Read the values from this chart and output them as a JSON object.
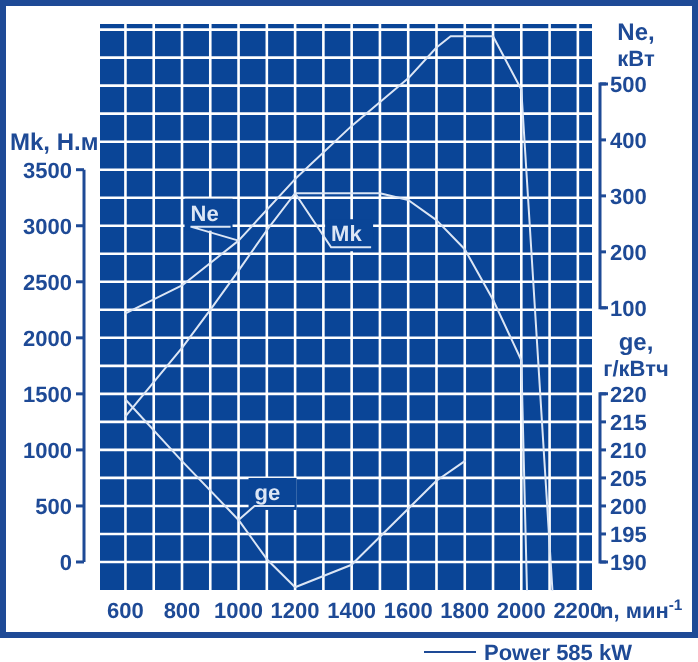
{
  "chart_data": {
    "type": "line",
    "xlabel": "n, мин$^{-1}$",
    "ylabel": "Mk, Н.м",
    "y2label": "Ne, кВт",
    "y3label": "ge, г/кВтч",
    "xlim": [
      510,
      2250
    ],
    "xticks": [
      600,
      {
        "value": 700,
        "label": null
      },
      800,
      {
        "value": 900,
        "label": null
      },
      1000,
      {
        "value": 1100,
        "label": null
      },
      1200,
      {
        "value": 1300,
        "label": null
      },
      1400,
      {
        "value": 1500,
        "label": null
      },
      1600,
      {
        "value": 1700,
        "label": null
      },
      1800,
      {
        "value": 1900,
        "label": null
      },
      2000,
      {
        "value": 2100,
        "label": null
      },
      2200
    ],
    "ylim": [
      -250,
      4800
    ],
    "yticks": [
      0,
      {
        "value": 250,
        "label": null
      },
      500,
      {
        "value": 750,
        "label": null
      },
      1000,
      {
        "value": 1250,
        "label": null
      },
      1500,
      {
        "value": 1750,
        "label": null
      },
      2000,
      {
        "value": 2250,
        "label": null
      },
      2500,
      {
        "value": 2750,
        "label": null
      },
      3000,
      {
        "value": 3250,
        "label": null
      },
      3500,
      {
        "value": 3750,
        "label": null
      },
      {
        "value": 4000,
        "label": null
      },
      {
        "value": 4250,
        "label": null
      },
      {
        "value": 4500,
        "label": null
      },
      {
        "value": 4750,
        "label": null
      }
    ],
    "y2lim": [
      -404,
      607
    ],
    "y2ticks": [
      100,
      200,
      300,
      400,
      500
    ],
    "y3lim": [
      185,
      286
    ],
    "y3ticks": [
      190,
      195,
      200,
      205,
      210,
      215,
      220
    ],
    "grid": true,
    "series": [
      {
        "name": "Mk",
        "color": "#dce6f5",
        "x": [
          600,
          800,
          900,
          1000,
          1100,
          1200,
          1500,
          1600,
          1700,
          1800,
          1900,
          2000,
          2020
        ],
        "values": [
          1300,
          1910,
          2250,
          2600,
          2960,
          3290,
          3290,
          3230,
          3050,
          2790,
          2340,
          1800,
          -250
        ]
      },
      {
        "name": "Ne",
        "color": "#dce6f5",
        "axis": "y2",
        "x": [
          600,
          800,
          1000,
          1200,
          1400,
          1600,
          1700,
          1750,
          1900,
          2000,
          2110
        ],
        "values": [
          90,
          140,
          220,
          330,
          425,
          510,
          565,
          585,
          585,
          490,
          -404
        ]
      },
      {
        "name": "ge",
        "color": "#dce6f5",
        "axis": "y3",
        "x": [
          600,
          800,
          1000,
          1100,
          1200,
          1400,
          1600,
          1700,
          1800
        ],
        "values": [
          219,
          208,
          197.5,
          190.5,
          185.5,
          189.5,
          199.5,
          204.5,
          208
        ]
      }
    ],
    "annotations": [
      "Power 585 kW"
    ]
  }
}
